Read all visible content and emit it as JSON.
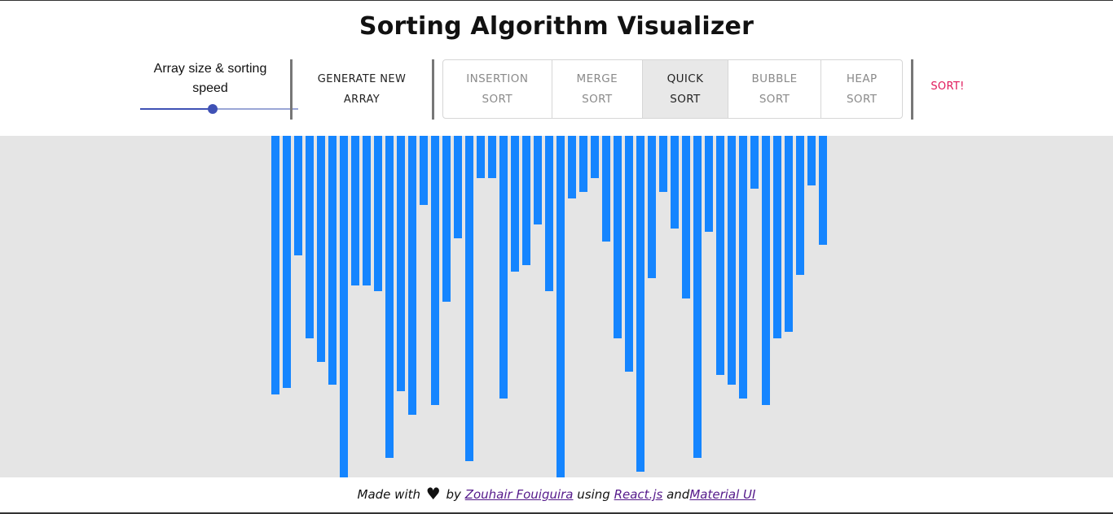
{
  "header": {
    "title": "Sorting Algorithm Visualizer"
  },
  "controls": {
    "slider_label": "Array size & sorting speed",
    "slider_value_percent": 46,
    "generate_label_line1": "GENERATE NEW",
    "generate_label_line2": "ARRAY",
    "algorithms": [
      {
        "line1": "INSERTION",
        "line2": "SORT",
        "selected": false
      },
      {
        "line1": "MERGE",
        "line2": "SORT",
        "selected": false
      },
      {
        "line1": "QUICK",
        "line2": "SORT",
        "selected": true
      },
      {
        "line1": "BUBBLE",
        "line2": "SORT",
        "selected": false
      },
      {
        "line1": "HEAP",
        "line2": "SORT",
        "selected": false
      }
    ],
    "sort_label": "SORT!"
  },
  "array": {
    "bar_color": "#1585ff",
    "max_value": 420,
    "values": [
      318,
      310,
      147,
      249,
      278,
      306,
      420,
      184,
      184,
      191,
      396,
      314,
      343,
      85,
      331,
      204,
      126,
      400,
      52,
      52,
      323,
      167,
      159,
      109,
      191,
      420,
      77,
      69,
      52,
      130,
      249,
      290,
      413,
      175,
      69,
      114,
      200,
      396,
      118,
      294,
      306,
      323,
      65,
      331,
      249,
      241,
      171,
      61,
      134
    ]
  },
  "footer": {
    "made_with": "Made with",
    "by": "by",
    "author": "Zouhair Fouiguira",
    "using": "using",
    "tech1": "React.js",
    "and": "and",
    "tech2": "Material UI"
  },
  "icons": {
    "heart": "heart-icon"
  },
  "colors": {
    "accent": "#3f51b5",
    "sort_button": "#e0185b",
    "background_area": "#e5e5e5"
  }
}
